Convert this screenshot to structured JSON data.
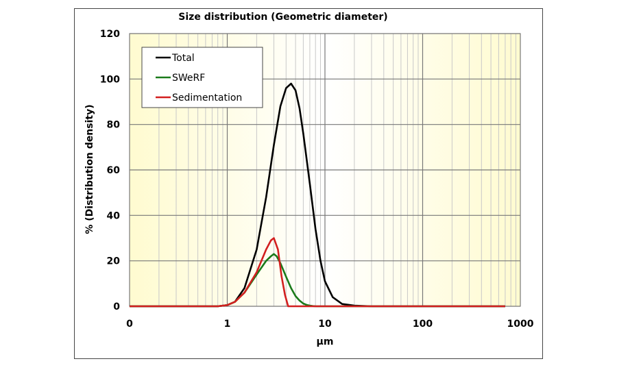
{
  "chart_data": {
    "type": "line",
    "title": "Size distribution (Geometric diameter)",
    "xlabel": "µm",
    "ylabel": "% (Distribution density)",
    "xscale": "log",
    "xlim": [
      0.1,
      1000
    ],
    "ylim": [
      0,
      120
    ],
    "x_ticks": [
      0.1,
      1,
      10,
      100,
      1000
    ],
    "x_tick_labels": [
      "0",
      "1",
      "10",
      "100",
      "1000"
    ],
    "y_ticks": [
      0,
      20,
      40,
      60,
      80,
      100,
      120
    ],
    "y_tick_labels": [
      "0",
      "20",
      "40",
      "60",
      "80",
      "100",
      "120"
    ],
    "grid": "on",
    "legend_position": "top-left",
    "background": "light yellow gradient",
    "series": [
      {
        "name": "Total",
        "color": "#000000",
        "x": [
          0.1,
          0.8,
          1.0,
          1.2,
          1.5,
          2.0,
          2.5,
          3.0,
          3.5,
          4.0,
          4.5,
          5.0,
          5.5,
          6.0,
          7.0,
          8.0,
          9.0,
          10.0,
          12.0,
          15.0,
          20.0,
          30.0,
          50.0,
          100.0,
          300.0,
          700.0
        ],
        "values": [
          0,
          0,
          0.5,
          2,
          8,
          25,
          48,
          71,
          88,
          96,
          98,
          95,
          87,
          76,
          54,
          34,
          20,
          11,
          4,
          1,
          0.3,
          0,
          0,
          0,
          0,
          0
        ]
      },
      {
        "name": "SWeRF",
        "color": "#1a7a1a",
        "x": [
          0.1,
          0.8,
          1.0,
          1.2,
          1.5,
          2.0,
          2.5,
          2.8,
          3.0,
          3.2,
          3.5,
          4.0,
          4.5,
          5.0,
          5.5,
          6.0,
          6.5,
          7.0,
          7.5,
          8.0,
          10.0,
          20.0,
          100.0,
          700.0
        ],
        "values": [
          0,
          0,
          0.5,
          2,
          6,
          14,
          20,
          22,
          23,
          22,
          19,
          13,
          8,
          4.5,
          2.5,
          1.2,
          0.6,
          0.3,
          0.1,
          0,
          0,
          0,
          0,
          0
        ]
      },
      {
        "name": "Sedimentation",
        "color": "#d21f1f",
        "x": [
          0.1,
          0.8,
          1.0,
          1.2,
          1.5,
          2.0,
          2.5,
          2.8,
          3.0,
          3.3,
          3.6,
          3.9,
          4.2,
          5.0,
          10.0,
          100.0,
          700.0
        ],
        "values": [
          0,
          0,
          0.5,
          2,
          6,
          15,
          25,
          29,
          30,
          25,
          13,
          5,
          0,
          0,
          0,
          0,
          0
        ]
      }
    ]
  }
}
